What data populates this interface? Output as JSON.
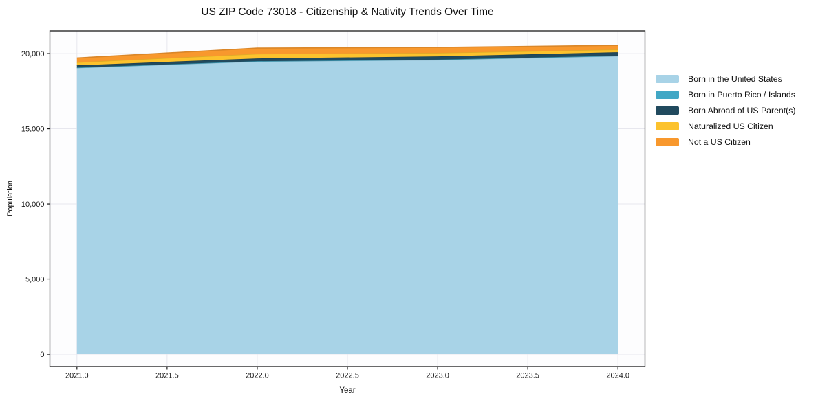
{
  "chart_data": {
    "type": "area",
    "stacked": true,
    "title": "US ZIP Code 73018 - Citizenship & Nativity Trends Over Time",
    "xlabel": "Year",
    "ylabel": "Population",
    "x": [
      2021,
      2022,
      2023,
      2024
    ],
    "series": [
      {
        "name": "Born in the United States",
        "color": "#a8d3e7",
        "values": [
          19060,
          19480,
          19580,
          19840
        ]
      },
      {
        "name": "Born in Puerto Rico / Islands",
        "color": "#41a7c5",
        "values": [
          10,
          15,
          20,
          20
        ]
      },
      {
        "name": "Born Abroad of US Parent(s)",
        "color": "#214a5e",
        "values": [
          150,
          185,
          215,
          230
        ]
      },
      {
        "name": "Naturalized US Citizen",
        "color": "#fcc22d",
        "values": [
          200,
          305,
          230,
          180
        ]
      },
      {
        "name": "Not a US Citizen",
        "color": "#f8982d",
        "values": [
          290,
          380,
          365,
          275
        ]
      }
    ],
    "xlim": [
      2020.85,
      2024.15
    ],
    "ylim": [
      -820,
      21510
    ],
    "xticks": {
      "values": [
        2021.0,
        2021.5,
        2022.0,
        2022.5,
        2023.0,
        2023.5,
        2024.0
      ],
      "labels": [
        "2021.0",
        "2021.5",
        "2022.0",
        "2022.5",
        "2023.0",
        "2023.5",
        "2024.0"
      ]
    },
    "yticks": {
      "values": [
        0,
        5000,
        10000,
        15000,
        20000
      ],
      "labels": [
        "0",
        "5,000",
        "10,000",
        "15,000",
        "20,000"
      ]
    },
    "grid": true,
    "legend_position": "right"
  }
}
